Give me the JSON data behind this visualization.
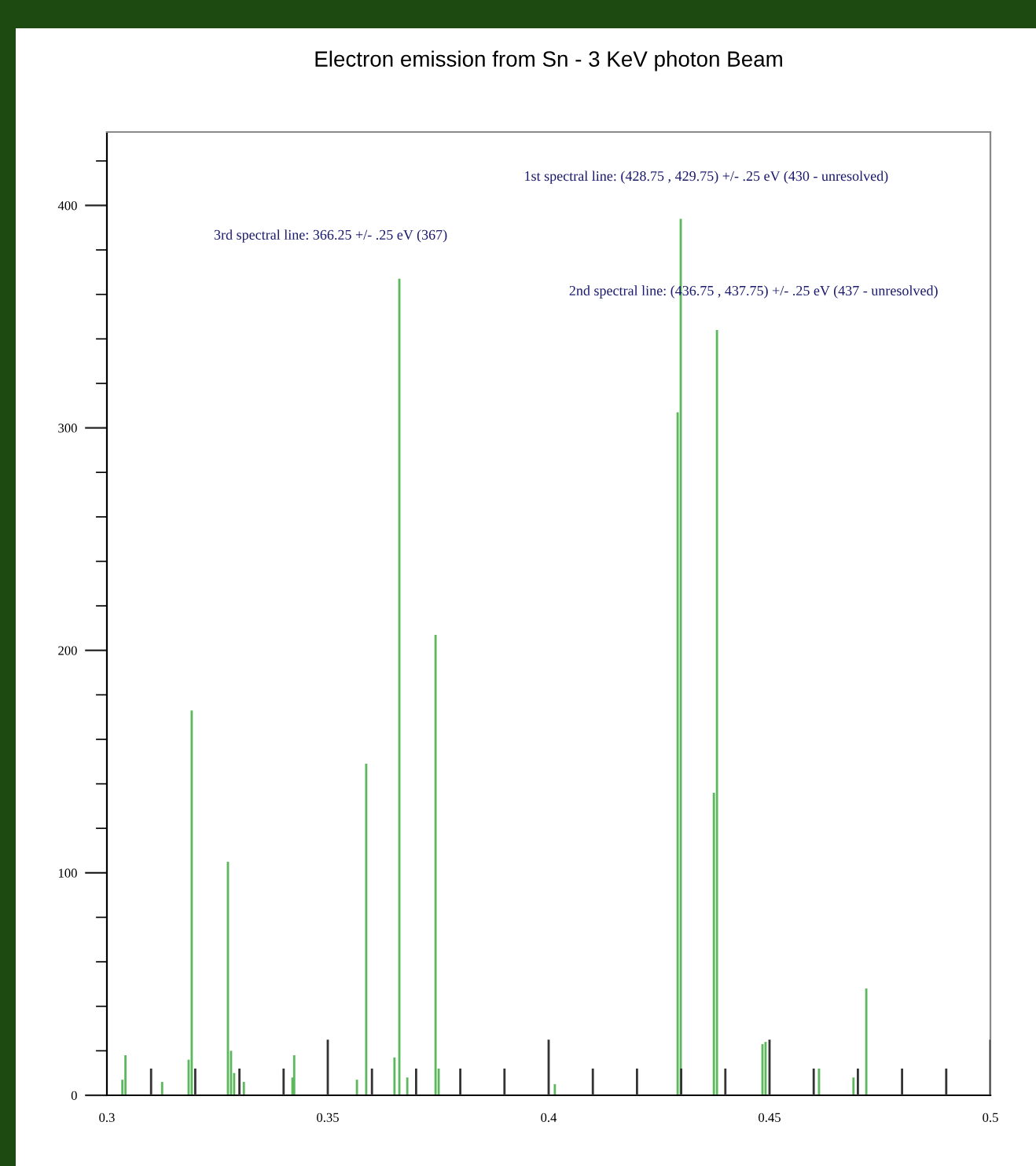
{
  "chart_data": {
    "type": "bar",
    "title": "Electron emission from Sn - 3 KeV photon Beam",
    "xlim": [
      0.3,
      0.5
    ],
    "xticks": [
      0.3,
      0.35,
      0.4,
      0.45,
      0.5
    ],
    "ylim": [
      0,
      433
    ],
    "yticks": [
      0,
      {
        "value": 20,
        "label": null
      },
      {
        "value": 40,
        "label": null
      },
      {
        "value": 60,
        "label": null
      },
      {
        "value": 80,
        "label": null
      },
      100,
      {
        "value": 120,
        "label": null
      },
      {
        "value": 140,
        "label": null
      },
      {
        "value": 160,
        "label": null
      },
      {
        "value": 180,
        "label": null
      },
      200,
      {
        "value": 220,
        "label": null
      },
      {
        "value": 240,
        "label": null
      },
      {
        "value": 260,
        "label": null
      },
      {
        "value": 280,
        "label": null
      },
      300,
      {
        "value": 320,
        "label": null
      },
      {
        "value": 340,
        "label": null
      },
      {
        "value": 360,
        "label": null
      },
      {
        "value": 380,
        "label": null
      },
      400,
      {
        "value": 420,
        "label": null
      }
    ],
    "grid": false,
    "legend": false,
    "series": [
      {
        "color": "#5cb85c",
        "x": [
          0.3035,
          0.3042,
          0.3125,
          0.3185,
          0.3192,
          0.3274,
          0.3281,
          0.3288,
          0.331,
          0.342,
          0.3424,
          0.3566,
          0.3587,
          0.3651,
          0.3662,
          0.368,
          0.3744,
          0.3751,
          0.4014,
          0.4292,
          0.4299,
          0.4374,
          0.4381,
          0.4484,
          0.4491,
          0.4612,
          0.469,
          0.4719
        ],
        "values": [
          7,
          18,
          6,
          16,
          173,
          105,
          20,
          10,
          6,
          8,
          18,
          7,
          149,
          17,
          367,
          8,
          207,
          12,
          5,
          307,
          394,
          136,
          344,
          23,
          24,
          12,
          8,
          48
        ]
      },
      {
        "color": "#333333",
        "x": [
          0.31,
          0.32,
          0.33,
          0.34,
          0.35,
          0.36,
          0.37,
          0.38,
          0.39,
          0.4,
          0.41,
          0.42,
          0.43,
          0.44,
          0.45,
          0.46,
          0.47,
          0.48,
          0.49,
          0.5
        ],
        "values": [
          12,
          12,
          12,
          12,
          25,
          12,
          12,
          12,
          12,
          25,
          12,
          12,
          12,
          12,
          25,
          12,
          12,
          12,
          12,
          25
        ]
      }
    ],
    "annotations": [
      "1st spectral line: (428.75 , 429.75) +/- .25 eV (430 - unresolved)",
      "3rd spectral line: 366.25 +/- .25 eV (367)",
      "2nd spectral line: (436.75 , 437.75) +/- .25 eV (437 - unresolved)"
    ]
  }
}
